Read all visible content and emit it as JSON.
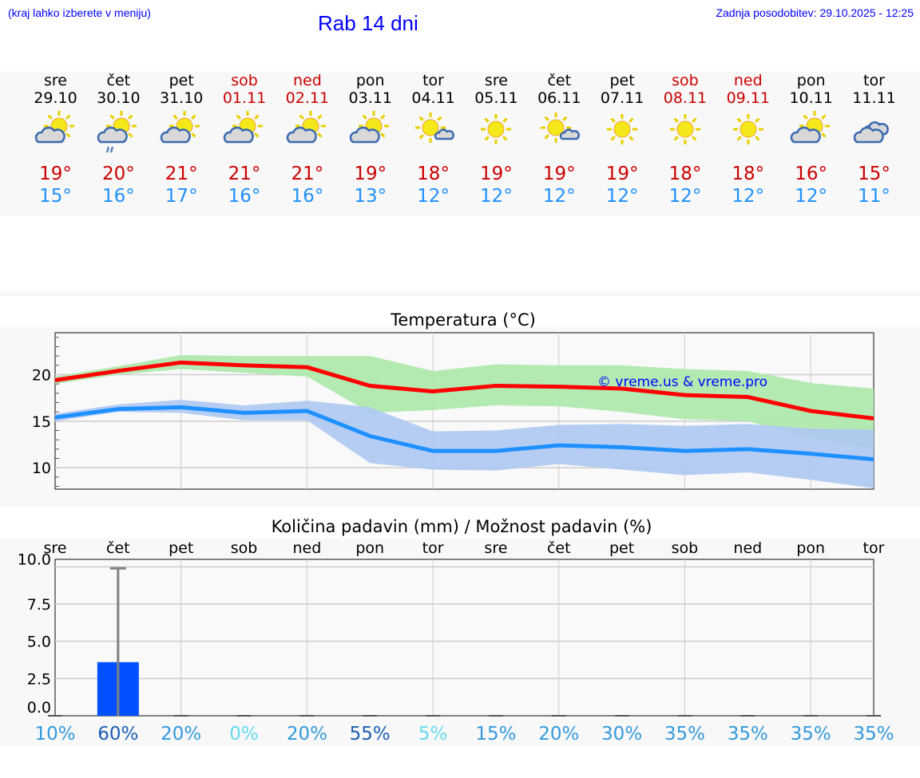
{
  "header": {
    "hint": "(kraj lahko izberete v meniju)",
    "title": "Rab 14 dni",
    "updated": "Zadnja posodobitev: 29.10.2025 - 12:25"
  },
  "days": [
    {
      "name": "sre",
      "date": "29.10",
      "weekend": false,
      "icon": "partly-cloudy",
      "max": "19°",
      "min": "15°"
    },
    {
      "name": "čet",
      "date": "30.10",
      "weekend": false,
      "icon": "partly-cloudy-rain",
      "max": "20°",
      "min": "16°"
    },
    {
      "name": "pet",
      "date": "31.10",
      "weekend": false,
      "icon": "partly-cloudy",
      "max": "21°",
      "min": "17°"
    },
    {
      "name": "sob",
      "date": "01.11",
      "weekend": true,
      "icon": "partly-cloudy",
      "max": "21°",
      "min": "16°"
    },
    {
      "name": "ned",
      "date": "02.11",
      "weekend": true,
      "icon": "partly-cloudy",
      "max": "21°",
      "min": "16°"
    },
    {
      "name": "pon",
      "date": "03.11",
      "weekend": false,
      "icon": "partly-cloudy",
      "max": "19°",
      "min": "13°"
    },
    {
      "name": "tor",
      "date": "04.11",
      "weekend": false,
      "icon": "mostly-sunny",
      "max": "18°",
      "min": "12°"
    },
    {
      "name": "sre",
      "date": "05.11",
      "weekend": false,
      "icon": "sunny",
      "max": "19°",
      "min": "12°"
    },
    {
      "name": "čet",
      "date": "06.11",
      "weekend": false,
      "icon": "mostly-sunny",
      "max": "19°",
      "min": "12°"
    },
    {
      "name": "pet",
      "date": "07.11",
      "weekend": false,
      "icon": "sunny",
      "max": "19°",
      "min": "12°"
    },
    {
      "name": "sob",
      "date": "08.11",
      "weekend": true,
      "icon": "sunny",
      "max": "18°",
      "min": "12°"
    },
    {
      "name": "ned",
      "date": "09.11",
      "weekend": true,
      "icon": "sunny",
      "max": "18°",
      "min": "12°"
    },
    {
      "name": "pon",
      "date": "10.11",
      "weekend": false,
      "icon": "partly-cloudy",
      "max": "16°",
      "min": "12°"
    },
    {
      "name": "tor",
      "date": "11.11",
      "weekend": false,
      "icon": "cloudy",
      "max": "15°",
      "min": "11°"
    }
  ],
  "colors": {
    "max": "#ff0000",
    "min": "#1e90ff",
    "maxBand": "#aee9ad",
    "minBand": "#aec8f2",
    "bar": "#0050ff",
    "pctLow": "#66d9ee",
    "pctMid": "#3399dd",
    "pctHigh": "#1a5fb4"
  },
  "chart_data": [
    {
      "type": "line",
      "title": "Temperatura (°C)",
      "watermark": "© vreme.us & vreme.pro",
      "ylim": [
        7.7,
        24.5
      ],
      "yticks": [
        10,
        15,
        20
      ],
      "series": [
        {
          "name": "max",
          "values": [
            19.4,
            20.4,
            21.3,
            21.0,
            20.8,
            18.8,
            18.2,
            18.8,
            18.7,
            18.5,
            17.8,
            17.6,
            16.1,
            15.3
          ],
          "band_hi": [
            19.8,
            20.9,
            22.1,
            22.0,
            22.0,
            22.0,
            20.4,
            21.1,
            21.0,
            21.0,
            20.6,
            20.4,
            19.1,
            18.5
          ],
          "band_lo": [
            19.0,
            20.0,
            20.6,
            20.2,
            19.8,
            15.9,
            16.2,
            16.7,
            16.6,
            16.0,
            15.2,
            15.0,
            13.2,
            12.0
          ]
        },
        {
          "name": "min",
          "values": [
            15.4,
            16.3,
            16.5,
            15.9,
            16.1,
            13.4,
            11.8,
            11.8,
            12.4,
            12.2,
            11.8,
            12.0,
            11.5,
            10.9
          ],
          "band_hi": [
            15.8,
            16.8,
            17.3,
            16.7,
            17.2,
            16.5,
            13.9,
            14.0,
            14.6,
            14.7,
            14.5,
            14.7,
            14.2,
            14.1
          ],
          "band_lo": [
            15.0,
            16.0,
            15.9,
            15.1,
            15.1,
            10.5,
            9.8,
            9.7,
            10.4,
            9.8,
            9.2,
            9.5,
            8.7,
            7.8
          ]
        }
      ]
    },
    {
      "type": "bar",
      "title": "Količina padavin (mm) / Možnost padavin (%)",
      "ylim": [
        0,
        10.5
      ],
      "yticks": [
        "0.0",
        "2.5",
        "5.0",
        "7.5",
        "10.0"
      ],
      "categories": [
        "sre",
        "čet",
        "pet",
        "sob",
        "ned",
        "pon",
        "tor",
        "sre",
        "čet",
        "pet",
        "sob",
        "ned",
        "pon",
        "tor"
      ],
      "values": [
        0,
        3.6,
        0,
        0,
        0,
        0,
        0,
        0,
        0,
        0,
        0,
        0,
        0,
        0
      ],
      "error_max": [
        0,
        9.9,
        0,
        0,
        0,
        0,
        0,
        0,
        0,
        0,
        0,
        0,
        0,
        0
      ],
      "probability": [
        "10%",
        "60%",
        "20%",
        "0%",
        "20%",
        "55%",
        "5%",
        "15%",
        "20%",
        "30%",
        "35%",
        "35%",
        "35%",
        "35%"
      ]
    }
  ]
}
